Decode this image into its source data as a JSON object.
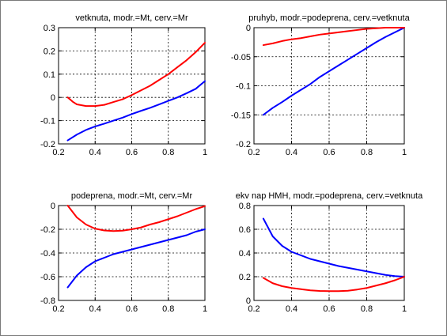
{
  "chart_data": [
    {
      "type": "line",
      "title": "vetknuta, modr.=Mt, cerv.=Mr",
      "xlim": [
        0.2,
        1
      ],
      "ylim": [
        -0.2,
        0.3
      ],
      "xticks": [
        0.2,
        0.4,
        0.6,
        0.8,
        1
      ],
      "xtick_labels": [
        "0.2",
        "0.4",
        "0.6",
        "0.8",
        "1"
      ],
      "yticks": [
        -0.2,
        -0.1,
        0,
        0.1,
        0.2,
        0.3
      ],
      "ytick_labels": [
        "-0.2",
        "-0.1",
        "0",
        "0.1",
        "0.2",
        "0.3"
      ],
      "grid": true,
      "series": [
        {
          "color": "#0000ff",
          "x": [
            0.25,
            0.3,
            0.35,
            0.4,
            0.45,
            0.5,
            0.55,
            0.6,
            0.65,
            0.7,
            0.75,
            0.8,
            0.85,
            0.9,
            0.95,
            1.0
          ],
          "y": [
            -0.185,
            -0.16,
            -0.14,
            -0.125,
            -0.113,
            -0.1,
            -0.087,
            -0.072,
            -0.058,
            -0.045,
            -0.03,
            -0.015,
            0.0,
            0.018,
            0.037,
            0.07
          ]
        },
        {
          "color": "#ff0000",
          "x": [
            0.25,
            0.28,
            0.3,
            0.35,
            0.4,
            0.45,
            0.5,
            0.55,
            0.6,
            0.65,
            0.7,
            0.75,
            0.8,
            0.85,
            0.9,
            0.95,
            1.0
          ],
          "y": [
            0.0,
            -0.02,
            -0.03,
            -0.037,
            -0.037,
            -0.032,
            -0.02,
            -0.008,
            0.01,
            0.03,
            0.05,
            0.075,
            0.1,
            0.13,
            0.16,
            0.195,
            0.235
          ]
        }
      ]
    },
    {
      "type": "line",
      "title": "pruhyb, modr.=podeprena, cerv.=vetknuta",
      "xlim": [
        0.2,
        1
      ],
      "ylim": [
        -0.2,
        0
      ],
      "xticks": [
        0.2,
        0.4,
        0.6,
        0.8,
        1
      ],
      "xtick_labels": [
        "0.2",
        "0.4",
        "0.6",
        "0.8",
        "1"
      ],
      "yticks": [
        -0.2,
        -0.15,
        -0.1,
        -0.05,
        0
      ],
      "ytick_labels": [
        "-0.2",
        "-0.15",
        "-0.1",
        "-0.05",
        "0"
      ],
      "grid": true,
      "series": [
        {
          "color": "#0000ff",
          "x": [
            0.25,
            0.3,
            0.35,
            0.4,
            0.45,
            0.5,
            0.55,
            0.6,
            0.65,
            0.7,
            0.75,
            0.8,
            0.85,
            0.9,
            0.95,
            1.0
          ],
          "y": [
            -0.15,
            -0.138,
            -0.128,
            -0.117,
            -0.107,
            -0.097,
            -0.085,
            -0.075,
            -0.065,
            -0.055,
            -0.045,
            -0.035,
            -0.025,
            -0.016,
            -0.008,
            0.0
          ]
        },
        {
          "color": "#ff0000",
          "x": [
            0.25,
            0.3,
            0.35,
            0.4,
            0.45,
            0.5,
            0.55,
            0.6,
            0.65,
            0.7,
            0.75,
            0.8,
            0.85,
            0.9,
            0.95,
            1.0
          ],
          "y": [
            -0.03,
            -0.027,
            -0.023,
            -0.02,
            -0.018,
            -0.015,
            -0.012,
            -0.01,
            -0.008,
            -0.006,
            -0.004,
            -0.002,
            -0.001,
            0.0,
            0.0,
            0.0
          ]
        }
      ]
    },
    {
      "type": "line",
      "title": "podeprena, modr.=Mt, cerv.=Mr",
      "xlim": [
        0.2,
        1
      ],
      "ylim": [
        -0.8,
        0
      ],
      "xticks": [
        0.2,
        0.4,
        0.6,
        0.8,
        1
      ],
      "xtick_labels": [
        "0.2",
        "0.4",
        "0.6",
        "0.8",
        "1"
      ],
      "yticks": [
        -0.8,
        -0.6,
        -0.4,
        -0.2,
        0
      ],
      "ytick_labels": [
        "-0.8",
        "-0.6",
        "-0.4",
        "-0.2",
        "0"
      ],
      "grid": true,
      "series": [
        {
          "color": "#0000ff",
          "x": [
            0.25,
            0.3,
            0.35,
            0.4,
            0.45,
            0.5,
            0.55,
            0.6,
            0.65,
            0.7,
            0.75,
            0.8,
            0.85,
            0.9,
            0.95,
            1.0
          ],
          "y": [
            -0.69,
            -0.59,
            -0.52,
            -0.47,
            -0.44,
            -0.41,
            -0.39,
            -0.37,
            -0.35,
            -0.33,
            -0.31,
            -0.29,
            -0.27,
            -0.25,
            -0.22,
            -0.2
          ]
        },
        {
          "color": "#ff0000",
          "x": [
            0.25,
            0.3,
            0.35,
            0.4,
            0.45,
            0.5,
            0.55,
            0.6,
            0.65,
            0.7,
            0.75,
            0.8,
            0.85,
            0.9,
            0.95,
            1.0
          ],
          "y": [
            0.0,
            -0.1,
            -0.16,
            -0.195,
            -0.21,
            -0.215,
            -0.212,
            -0.2,
            -0.185,
            -0.16,
            -0.14,
            -0.115,
            -0.09,
            -0.06,
            -0.03,
            -0.005
          ]
        }
      ]
    },
    {
      "type": "line",
      "title": "ekv nap HMH, modr.=podeprena, cerv.=vetknuta",
      "xlim": [
        0.2,
        1
      ],
      "ylim": [
        0,
        0.8
      ],
      "xticks": [
        0.2,
        0.4,
        0.6,
        0.8,
        1
      ],
      "xtick_labels": [
        "0.2",
        "0.4",
        "0.6",
        "0.8",
        "1"
      ],
      "yticks": [
        0,
        0.2,
        0.4,
        0.6,
        0.8
      ],
      "ytick_labels": [
        "0",
        "0.2",
        "0.4",
        "0.6",
        "0.8"
      ],
      "grid": true,
      "series": [
        {
          "color": "#0000ff",
          "x": [
            0.25,
            0.3,
            0.35,
            0.4,
            0.45,
            0.5,
            0.55,
            0.6,
            0.65,
            0.7,
            0.75,
            0.8,
            0.85,
            0.9,
            0.95,
            1.0
          ],
          "y": [
            0.69,
            0.54,
            0.46,
            0.41,
            0.38,
            0.35,
            0.33,
            0.31,
            0.29,
            0.275,
            0.26,
            0.245,
            0.23,
            0.215,
            0.205,
            0.2
          ]
        },
        {
          "color": "#ff0000",
          "x": [
            0.25,
            0.3,
            0.35,
            0.4,
            0.45,
            0.5,
            0.55,
            0.6,
            0.65,
            0.7,
            0.75,
            0.8,
            0.85,
            0.9,
            0.95,
            1.0
          ],
          "y": [
            0.19,
            0.145,
            0.12,
            0.105,
            0.095,
            0.085,
            0.08,
            0.078,
            0.078,
            0.082,
            0.092,
            0.105,
            0.125,
            0.145,
            0.17,
            0.2
          ]
        }
      ]
    }
  ]
}
